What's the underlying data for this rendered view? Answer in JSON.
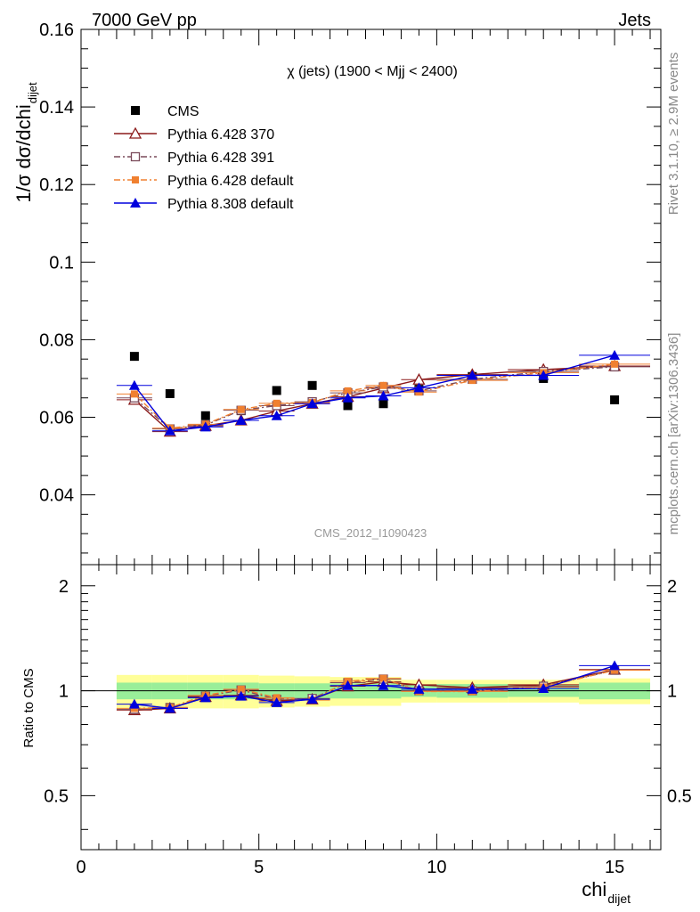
{
  "header": {
    "left": "7000 GeV pp",
    "right": "Jets"
  },
  "side": {
    "rivet": "Rivet 3.1.10, ≥ 2.9M events",
    "mcplots": "mcplots.cern.ch [arXiv:1306.3436]"
  },
  "watermark": "CMS_2012_I1090423",
  "chart_data": {
    "type": "scatter",
    "title": "χ (jets) (1900 < Mjj < 2400)",
    "ylabel": "1/σ dσ/dchi",
    "ylabel_sub": "dijet",
    "xlabel": "chi",
    "xlabel_sub": "dijet",
    "xlim": [
      0,
      16.3
    ],
    "ylim": [
      0.022,
      0.16
    ],
    "yticks": [
      "0.04",
      "0.06",
      "0.08",
      "0.1",
      "0.12",
      "0.14",
      "0.16"
    ],
    "ytick_values": [
      0.04,
      0.06,
      0.08,
      0.1,
      0.12,
      0.14,
      0.16
    ],
    "xticks": [
      "0",
      "5",
      "10",
      "15"
    ],
    "xtick_values": [
      0,
      5,
      10,
      15
    ],
    "x": [
      1.5,
      2.5,
      3.5,
      4.5,
      5.5,
      6.5,
      7.5,
      8.5,
      9.5,
      11,
      13,
      15
    ],
    "bin_edges": [
      1,
      2,
      3,
      4,
      5,
      6,
      7,
      8,
      9,
      10,
      12,
      14,
      16
    ],
    "series": [
      {
        "name": "CMS",
        "color": "#000000",
        "marker": "square",
        "line": "none",
        "values": [
          0.0757,
          0.0661,
          0.0604,
          0.0617,
          0.0669,
          0.0682,
          0.063,
          0.0635,
          0.0672,
          0.0705,
          0.07,
          0.0645
        ]
      },
      {
        "name": "Pythia 6.428 370",
        "color": "#8b1a1a",
        "marker": "open-triangle",
        "line": "solid",
        "values": [
          0.0645,
          0.0563,
          0.0578,
          0.0592,
          0.0616,
          0.0635,
          0.0653,
          0.0675,
          0.0697,
          0.071,
          0.0723,
          0.0732
        ]
      },
      {
        "name": "Pythia 6.428 391",
        "color": "#7a4a5a",
        "marker": "open-square",
        "line": "dashdot",
        "values": [
          0.065,
          0.057,
          0.058,
          0.0618,
          0.063,
          0.064,
          0.0663,
          0.0678,
          0.0668,
          0.0698,
          0.0718,
          0.073
        ]
      },
      {
        "name": "Pythia 6.428 default",
        "color": "#f08030",
        "marker": "filled-square",
        "line": "dashdot",
        "values": [
          0.066,
          0.0572,
          0.0582,
          0.062,
          0.0636,
          0.0638,
          0.0668,
          0.0682,
          0.0665,
          0.0695,
          0.0715,
          0.0737
        ]
      },
      {
        "name": "Pythia 8.308 default",
        "color": "#0000dd",
        "marker": "filled-triangle",
        "line": "solid",
        "values": [
          0.0682,
          0.0565,
          0.0575,
          0.0592,
          0.0604,
          0.0635,
          0.065,
          0.0655,
          0.0676,
          0.0708,
          0.0708,
          0.076
        ]
      }
    ],
    "ratio": {
      "ylabel": "Ratio to CMS",
      "ylim": [
        0.35,
        2.3
      ],
      "log": true,
      "yticks": [
        "0.5",
        "1",
        "2"
      ],
      "ytick_values": [
        0.5,
        1,
        2
      ],
      "band_green": [
        0.055,
        0.055,
        0.055,
        0.055,
        0.05,
        0.05,
        0.05,
        0.05,
        0.04,
        0.045,
        0.04,
        0.055
      ],
      "band_yellow": [
        0.11,
        0.11,
        0.11,
        0.11,
        0.105,
        0.1,
        0.095,
        0.095,
        0.075,
        0.075,
        0.075,
        0.085
      ],
      "series": [
        {
          "name": "Pythia 6.428 370",
          "values": [
            0.88,
            0.89,
            0.96,
            0.97,
            0.935,
            0.945,
            1.03,
            1.06,
            1.04,
            1.02,
            1.04,
            1.15
          ]
        },
        {
          "name": "Pythia 6.428 391",
          "values": [
            0.885,
            0.895,
            0.965,
            1.005,
            0.945,
            0.95,
            1.055,
            1.08,
            1.0,
            1.0,
            1.03,
            1.145
          ]
        },
        {
          "name": "Pythia 6.428 default",
          "values": [
            0.89,
            0.895,
            0.97,
            1.01,
            0.955,
            0.94,
            1.065,
            1.085,
            0.995,
            0.995,
            1.025,
            1.145
          ]
        },
        {
          "name": "Pythia 8.308 default",
          "values": [
            0.915,
            0.89,
            0.955,
            0.965,
            0.925,
            0.945,
            1.035,
            1.035,
            1.01,
            1.01,
            1.015,
            1.18
          ]
        }
      ]
    }
  }
}
